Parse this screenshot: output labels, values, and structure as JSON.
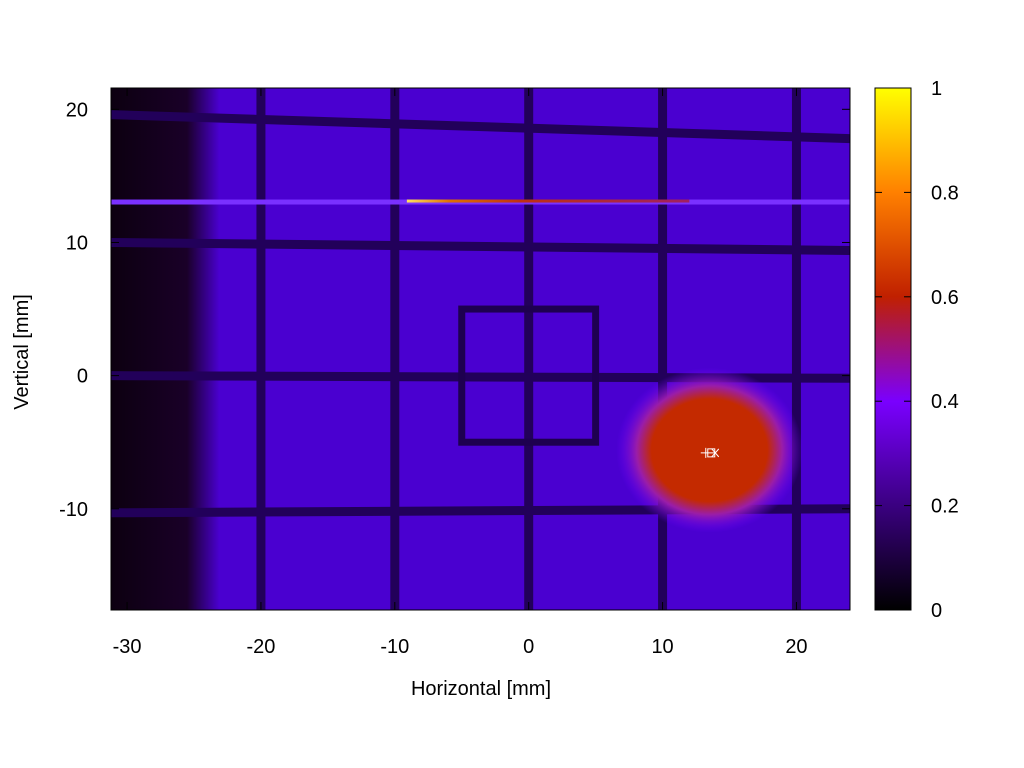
{
  "chart_data": {
    "type": "heatmap",
    "title": "",
    "xlabel": "Horizontal [mm]",
    "ylabel": "Vertical [mm]",
    "xlim": [
      -31.2,
      24.0
    ],
    "ylim": [
      -17.6,
      21.6
    ],
    "xticks": [
      -30,
      -20,
      -10,
      0,
      10,
      20
    ],
    "yticks": [
      -10,
      0,
      10,
      20
    ],
    "colorbar": {
      "range": [
        0,
        1
      ],
      "ticks": [
        0,
        0.2,
        0.4,
        0.6,
        0.8,
        1
      ],
      "palette": [
        "#000000",
        "#3a0080",
        "#7a00ff",
        "#c02000",
        "#ff8000",
        "#ffff00"
      ]
    },
    "background_level": 0.2,
    "dark_edge_x_max": -24,
    "grid_lines_x": [
      -20,
      -10,
      0,
      10,
      20
    ],
    "grid_lines_y_left": [
      19.6,
      10.0,
      0.0,
      -10.3
    ],
    "grid_lines_y_right": [
      17.8,
      9.4,
      -0.2,
      -10.0
    ],
    "marked_square": {
      "x": [
        -5,
        5
      ],
      "y": [
        -5,
        5
      ]
    },
    "hot_spot": {
      "cx": 13.5,
      "cy": -5.6,
      "width": 9,
      "height": 8,
      "level": 0.5
    },
    "streak": {
      "y": 13.0,
      "x_start": -31.2,
      "x_end": 24.0,
      "bright_x_start": -9.1,
      "bright_x_end": 12,
      "bright_level": 0.8
    },
    "beam_center_marker": {
      "x": 13.6,
      "y": -5.8
    },
    "grid": false
  }
}
